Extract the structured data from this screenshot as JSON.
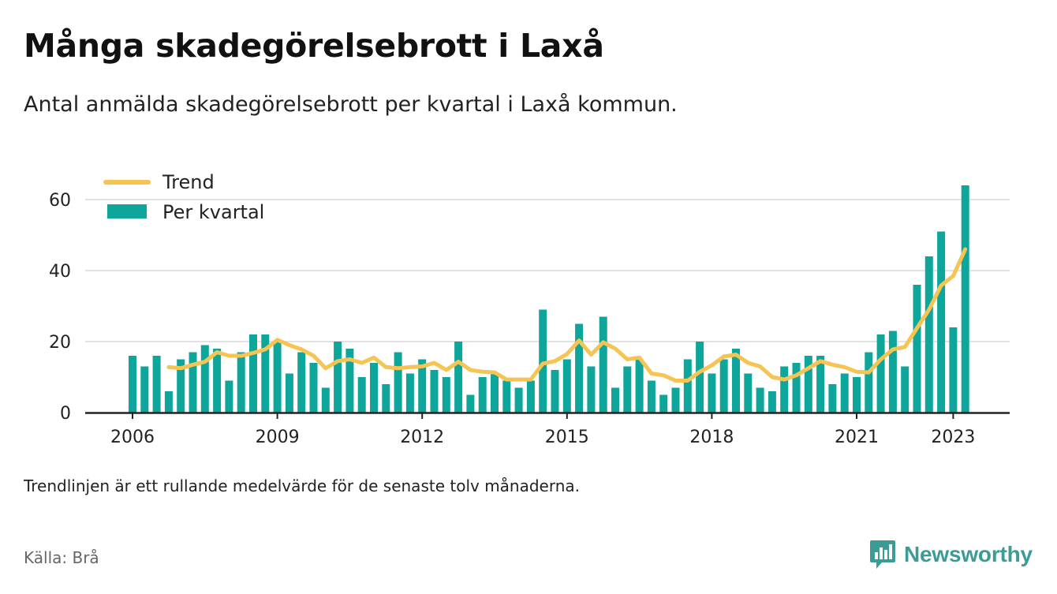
{
  "header": {
    "title": "Många skadegörelsebrott i Laxå",
    "subtitle": "Antal anmälda skadegörelsebrott per kvartal i Laxå kommun."
  },
  "footer": {
    "note": "Trendlinjen är ett rullande medelvärde för de senaste tolv månaderna.",
    "source": "Källa: Brå",
    "brand": "Newsworthy",
    "brand_icon": "bar-chart-speech-bubble-icon",
    "brand_color": "#3a9c94"
  },
  "chart_data": {
    "type": "bar",
    "x_tick_labels": [
      "2006",
      "2009",
      "2012",
      "2015",
      "2018",
      "2021",
      "2023"
    ],
    "x_tick_years": [
      2006,
      2009,
      2012,
      2015,
      2018,
      2021,
      2023
    ],
    "x_start": 2006.0,
    "y_ticks": [
      0,
      20,
      40,
      60
    ],
    "ylim": [
      0,
      68
    ],
    "grid": true,
    "legend_position": "top-left",
    "legend": [
      {
        "label": "Trend",
        "kind": "line",
        "color": "#f5c453"
      },
      {
        "label": "Per kvartal",
        "kind": "bar",
        "color": "#0ea59a"
      }
    ],
    "series": [
      {
        "name": "Per kvartal",
        "kind": "bar",
        "color": "#0ea59a",
        "values": [
          16,
          13,
          16,
          6,
          15,
          17,
          19,
          18,
          9,
          17,
          22,
          22,
          20,
          11,
          17,
          14,
          7,
          20,
          18,
          10,
          14,
          8,
          17,
          11,
          15,
          12,
          10,
          20,
          5,
          10,
          11,
          9,
          7,
          9,
          29,
          12,
          15,
          25,
          13,
          27,
          7,
          13,
          15,
          9,
          5,
          7,
          15,
          20,
          11,
          15,
          18,
          11,
          7,
          6,
          13,
          14,
          16,
          16,
          8,
          11,
          10,
          17,
          22,
          23,
          13,
          36,
          44,
          51,
          24,
          64
        ]
      },
      {
        "name": "Trend",
        "kind": "line",
        "color": "#f5c453",
        "values": [
          null,
          null,
          null,
          12.8,
          12.5,
          13.5,
          14.3,
          17.0,
          16.0,
          16.0,
          16.8,
          17.8,
          20.5,
          19.0,
          17.8,
          16.0,
          12.5,
          14.5,
          15.0,
          14.0,
          15.5,
          12.8,
          12.5,
          12.8,
          13.0,
          14.0,
          12.0,
          14.3,
          12.0,
          11.5,
          11.3,
          9.3,
          9.3,
          9.3,
          13.8,
          14.5,
          16.5,
          20.3,
          16.3,
          19.8,
          18.0,
          15.0,
          15.5,
          11.0,
          10.5,
          9.0,
          9.0,
          11.5,
          13.3,
          15.8,
          16.3,
          14.0,
          13.0,
          10.0,
          9.3,
          10.5,
          12.5,
          14.5,
          13.5,
          12.8,
          11.5,
          11.3,
          15.0,
          17.8,
          18.5,
          23.8,
          29.0,
          35.8,
          38.5,
          46.0
        ]
      }
    ]
  }
}
